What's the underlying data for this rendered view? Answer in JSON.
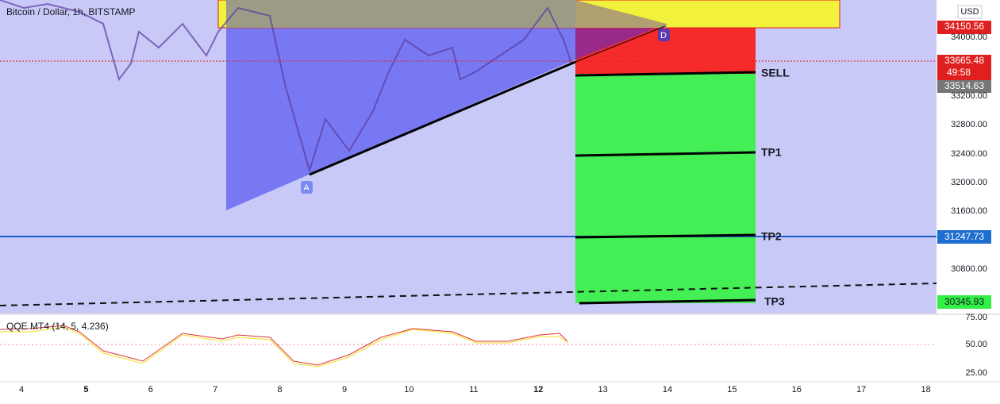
{
  "header": {
    "title": "Bitcoin / Dollar, 1h, BITSTAMP",
    "currency": "USD"
  },
  "price_axis": {
    "ticks": [
      "34000.00",
      "33200.00",
      "32800.00",
      "32400.00",
      "32000.00",
      "31600.00",
      "30800.00"
    ]
  },
  "price_labels": {
    "target": "34150.56",
    "last": "33665.48",
    "countdown": "49:58",
    "open": "33514.63",
    "level": "31247.73",
    "tp3": "30345.93"
  },
  "trade_labels": [
    "SELL",
    "TP1",
    "TP2",
    "TP3"
  ],
  "points": [
    "A",
    "D"
  ],
  "indicator": {
    "title": "QQE MT4 (14, 5, 4.236)",
    "ticks": [
      "75.00",
      "50.00",
      "25.00"
    ]
  },
  "time_axis": {
    "labels": [
      "4",
      "5",
      "6",
      "7",
      "8",
      "9",
      "10",
      "11",
      "12",
      "13",
      "14",
      "15",
      "16",
      "17",
      "18"
    ]
  }
}
